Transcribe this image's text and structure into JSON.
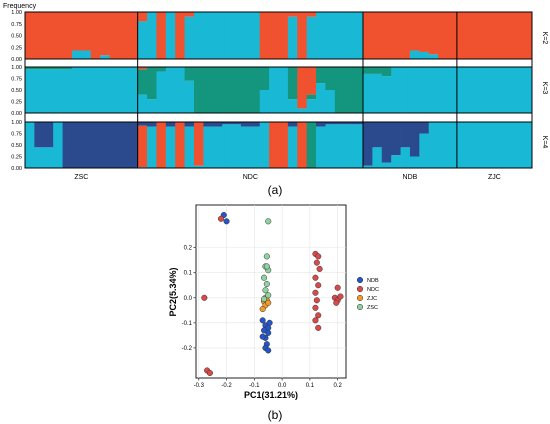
{
  "chart_data": [
    {
      "type": "bar",
      "subtype": "stacked-admixture",
      "y_axis_title": "Frequency",
      "y_ticks": [
        "0.00",
        "0.25",
        "0.50",
        "0.75",
        "1.00"
      ],
      "ylim": [
        0,
        1
      ],
      "panel_labels": [
        "K=2",
        "K=3",
        "K=4"
      ],
      "populations": [
        {
          "name": "ZSC",
          "individuals": 12
        },
        {
          "name": "NDC",
          "individuals": 24
        },
        {
          "name": "NDB",
          "individuals": 10
        },
        {
          "name": "ZJC",
          "individuals": 8
        }
      ],
      "cluster_colors": [
        "#f0522f",
        "#19b9d6",
        "#14967e",
        "#2b4a8e"
      ],
      "panels": [
        {
          "k": 2,
          "cluster1": [
            1,
            1,
            1,
            1,
            1,
            0.82,
            0.82,
            1,
            0.92,
            1,
            1,
            1,
            0.2,
            0,
            1,
            0,
            1,
            0.1,
            0,
            0,
            0,
            0,
            0,
            0,
            0,
            1,
            1,
            1,
            0.1,
            1,
            0.1,
            0,
            0,
            0,
            0,
            0,
            1,
            1,
            1,
            1,
            1,
            0.82,
            0.85,
            0.9,
            1,
            1,
            1,
            1,
            1,
            1,
            1,
            1,
            1,
            1
          ]
        },
        {
          "k": 3,
          "cluster1": [
            0,
            0,
            0,
            0,
            0,
            0,
            0,
            0,
            0,
            0,
            0,
            0,
            0.05,
            0,
            0,
            0,
            0,
            0,
            0,
            0,
            0,
            0,
            0,
            0,
            0,
            0,
            0,
            0,
            0,
            0.9,
            0.6,
            0,
            0,
            0,
            0,
            0,
            0,
            0,
            0,
            0,
            0,
            0,
            0,
            0,
            0,
            0,
            0,
            0,
            0,
            0,
            0,
            0,
            0,
            0
          ],
          "cluster2": [
            0.05,
            0.05,
            0.05,
            0.05,
            0.05,
            0,
            0,
            0,
            0,
            0,
            0,
            0,
            0.55,
            0.7,
            0.1,
            0,
            0,
            0.3,
            1,
            1,
            1,
            1,
            1,
            1,
            1,
            0.5,
            0,
            0,
            0.7,
            0,
            0.1,
            0.35,
            0.5,
            1,
            1,
            1,
            0.15,
            0.15,
            0.2,
            0,
            0,
            0,
            0,
            0,
            0,
            0,
            0,
            0,
            0,
            0,
            0,
            0,
            0,
            0
          ]
        },
        {
          "k": 4,
          "cluster1": [
            0,
            0,
            0,
            0,
            0,
            0,
            0,
            0,
            0,
            0,
            0,
            0,
            0.9,
            0,
            1,
            0,
            1,
            0,
            0.95,
            0,
            0,
            0,
            0,
            0,
            0,
            0,
            1,
            1,
            0,
            1,
            0,
            0,
            0,
            0,
            0,
            0,
            0,
            0,
            0,
            0,
            0,
            0,
            0,
            0,
            0,
            0,
            0,
            0,
            0,
            0,
            0,
            0,
            0,
            0
          ],
          "cluster3": [
            0,
            0,
            0,
            0,
            0,
            0,
            0,
            0,
            0,
            0,
            0,
            0,
            0,
            0,
            0,
            0,
            0,
            0,
            0,
            0,
            0,
            0,
            0,
            0,
            0,
            0,
            0,
            0,
            0,
            0,
            1,
            0,
            0,
            0,
            0,
            0,
            0,
            0,
            0,
            0,
            0,
            0,
            0,
            0,
            0,
            0,
            0,
            0,
            0,
            0,
            0,
            0,
            0,
            0
          ],
          "cluster4": [
            0,
            0.55,
            0.55,
            0,
            1,
            1,
            1,
            1,
            1,
            1,
            1,
            1,
            0.08,
            0.1,
            0,
            0.1,
            0,
            0.1,
            0,
            0.1,
            0.1,
            0.05,
            0.05,
            0.1,
            0.1,
            0,
            0,
            0,
            0.1,
            0,
            0,
            0.1,
            0.05,
            0.05,
            0.05,
            0.05,
            0.95,
            0.55,
            0.88,
            0.72,
            0.55,
            0.75,
            0.25,
            0,
            0,
            0,
            0,
            0,
            0,
            0,
            0,
            0,
            0,
            0
          ]
        }
      ],
      "caption": "(a)"
    },
    {
      "type": "scatter",
      "xlabel": "PC1(31.21%)",
      "ylabel": "PC2(5.34%)",
      "xlim": [
        -0.31,
        0.23
      ],
      "ylim": [
        -0.32,
        0.37
      ],
      "x_ticks": [
        "-0.3",
        "-0.2",
        "-0.1",
        "0.0",
        "0.1",
        "0.2"
      ],
      "x_tick_values": [
        -0.3,
        -0.2,
        -0.1,
        0.0,
        0.1,
        0.2
      ],
      "y_ticks": [
        "-0.2",
        "-0.1",
        "0.0",
        "0.1",
        "0.2"
      ],
      "y_tick_values": [
        -0.2,
        -0.1,
        0.0,
        0.1,
        0.2
      ],
      "grid": true,
      "legend_position": "right",
      "series": [
        {
          "name": "NDB",
          "color": "#2457c5",
          "points": [
            [
              -0.21,
              0.33
            ],
            [
              -0.2,
              0.305
            ],
            [
              -0.07,
              -0.09
            ],
            [
              -0.06,
              -0.11
            ],
            [
              -0.05,
              -0.12
            ],
            [
              -0.065,
              -0.13
            ],
            [
              -0.05,
              -0.14
            ],
            [
              -0.06,
              -0.16
            ],
            [
              -0.07,
              -0.155
            ],
            [
              -0.055,
              -0.185
            ],
            [
              -0.06,
              -0.2
            ],
            [
              -0.05,
              -0.21
            ],
            [
              -0.045,
              -0.1
            ]
          ]
        },
        {
          "name": "NDC",
          "color": "#d84a4a",
          "points": [
            [
              -0.22,
              0.315
            ],
            [
              -0.28,
              0.0
            ],
            [
              -0.27,
              -0.29
            ],
            [
              -0.26,
              -0.3
            ],
            [
              0.12,
              0.175
            ],
            [
              0.13,
              0.165
            ],
            [
              0.125,
              0.14
            ],
            [
              0.135,
              0.115
            ],
            [
              0.12,
              0.08
            ],
            [
              0.13,
              0.05
            ],
            [
              0.12,
              0.02
            ],
            [
              0.125,
              -0.01
            ],
            [
              0.12,
              -0.04
            ],
            [
              0.13,
              -0.07
            ],
            [
              0.12,
              -0.09
            ],
            [
              0.13,
              -0.12
            ],
            [
              0.2,
              0.04
            ],
            [
              0.19,
              0.0
            ],
            [
              0.2,
              -0.01
            ],
            [
              0.21,
              0.005
            ],
            [
              0.195,
              -0.02
            ]
          ]
        },
        {
          "name": "ZJC",
          "color": "#f39a2b",
          "points": [
            [
              -0.06,
              0.0
            ],
            [
              -0.065,
              -0.015
            ],
            [
              -0.055,
              -0.01
            ],
            [
              -0.06,
              -0.03
            ],
            [
              -0.07,
              -0.045
            ],
            [
              -0.05,
              -0.02
            ]
          ]
        },
        {
          "name": "ZSC",
          "color": "#8fd1a0",
          "points": [
            [
              -0.05,
              0.305
            ],
            [
              -0.055,
              0.165
            ],
            [
              -0.06,
              0.125
            ],
            [
              -0.05,
              0.11
            ],
            [
              -0.065,
              0.08
            ],
            [
              -0.055,
              0.055
            ],
            [
              -0.06,
              0.03
            ],
            [
              -0.05,
              0.01
            ],
            [
              -0.065,
              -0.005
            ],
            [
              -0.055,
              0.125
            ]
          ]
        }
      ],
      "caption": "(b)"
    }
  ]
}
